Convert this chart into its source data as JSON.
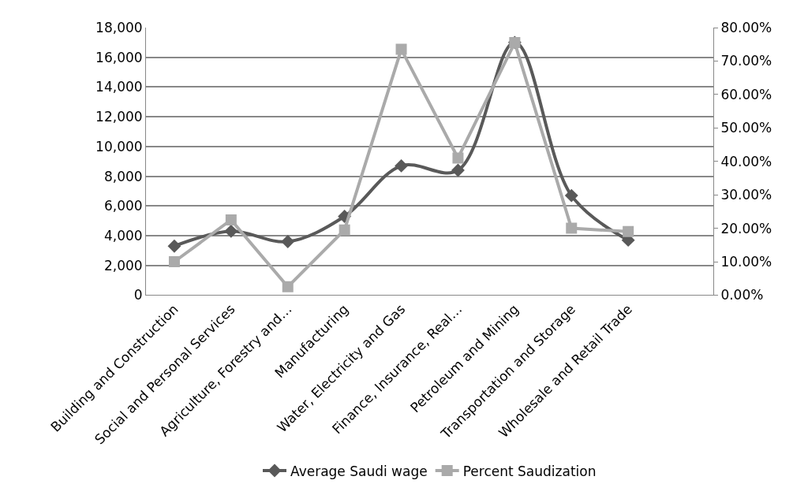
{
  "chart_data": {
    "type": "line",
    "categories": [
      "Building and Construction",
      "Social and Personal Services",
      "Agriculture, Forestry and…",
      "Manufacturing",
      "Water, Electricity and Gas",
      "Finance, Insurance, Real…",
      "Petroleum and Mining",
      "Transportation and Storage",
      "Wholesale and Retail Trade",
      null
    ],
    "series": [
      {
        "name": "Average Saudi wage",
        "color": "#595959",
        "marker": "diamond",
        "values": [
          3300,
          4300,
          3600,
          5300,
          8700,
          8400,
          17000,
          6700,
          3700,
          null
        ]
      },
      {
        "name": "Percent Saudization",
        "color": "#aaaaaa",
        "marker": "square",
        "axis": "y2",
        "values": [
          10,
          22.5,
          2.5,
          19.5,
          73.5,
          41,
          75.5,
          20,
          19,
          null
        ]
      }
    ],
    "ylim": [
      0,
      18000
    ],
    "yticks": [
      {
        "value": 0,
        "label": "0"
      },
      {
        "value": 2000,
        "label": "2,000"
      },
      {
        "value": 4000,
        "label": "4,000"
      },
      {
        "value": 6000,
        "label": "6,000"
      },
      {
        "value": 8000,
        "label": "8,000"
      },
      {
        "value": 10000,
        "label": "10,000"
      },
      {
        "value": 12000,
        "label": "12,000"
      },
      {
        "value": 14000,
        "label": "14,000"
      },
      {
        "value": 16000,
        "label": "16,000"
      },
      {
        "value": 18000,
        "label": "18,000"
      }
    ],
    "y2lim": [
      0,
      80
    ],
    "y2ticks": [
      {
        "value": 0,
        "label": "0.00%"
      },
      {
        "value": 10,
        "label": "10.00%"
      },
      {
        "value": 20,
        "label": "20.00%"
      },
      {
        "value": 30,
        "label": "30.00%"
      },
      {
        "value": 40,
        "label": "40.00%"
      },
      {
        "value": 50,
        "label": "50.00%"
      },
      {
        "value": 60,
        "label": "60.00%"
      },
      {
        "value": 70,
        "label": "70.00%"
      },
      {
        "value": 80,
        "label": "80.00%"
      }
    ],
    "grid": "y",
    "legend": "bottom"
  }
}
